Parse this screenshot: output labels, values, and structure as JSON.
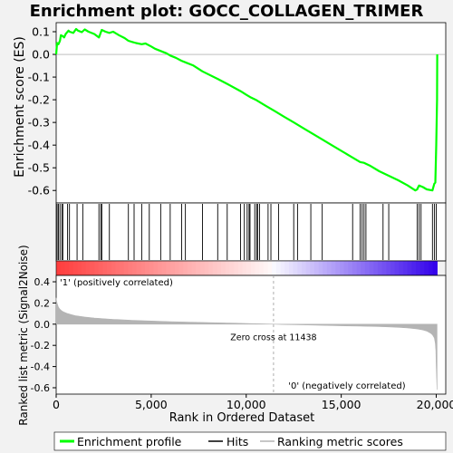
{
  "chart_data": {
    "type": "line",
    "title": "Enrichment plot: GOCC_COLLAGEN_TRIMER",
    "xlabel": "Rank in Ordered Dataset",
    "xlim": [
      0,
      20500
    ],
    "x_ticks": [
      "0",
      "5,000",
      "10,000",
      "15,000",
      "20,000"
    ],
    "x_tick_values": [
      0,
      5000,
      10000,
      15000,
      20000
    ],
    "panels": [
      {
        "name": "enrichment",
        "ylabel": "Enrichment score (ES)",
        "ylim": [
          -0.655,
          0.14
        ],
        "y_ticks": [
          "0.1",
          "0.0",
          "-0.1",
          "-0.2",
          "-0.3",
          "-0.4",
          "-0.5",
          "-0.6"
        ],
        "y_tick_values": [
          0.1,
          0.0,
          -0.1,
          -0.2,
          -0.3,
          -0.4,
          -0.5,
          -0.6
        ],
        "series": [
          {
            "name": "Enrichment profile",
            "color": "#00ff00",
            "x": [
              0,
              50,
              120,
              200,
              250,
              350,
              420,
              500,
              650,
              700,
              900,
              1050,
              1150,
              1350,
              1500,
              1700,
              2000,
              2250,
              2300,
              2400,
              2600,
              2800,
              3000,
              3300,
              3600,
              3800,
              4000,
              4200,
              4500,
              4700,
              5000,
              5200,
              5500,
              5800,
              6000,
              6300,
              6600,
              6800,
              7200,
              7700,
              8500,
              9000,
              9700,
              10000,
              10200,
              10500,
              11000,
              11500,
              12000,
              12500,
              13000,
              13500,
              14000,
              14500,
              15000,
              15500,
              15800,
              16000,
              16200,
              16500,
              17000,
              17500,
              18000,
              18500,
              18900,
              19000,
              19050,
              19100,
              19300,
              19500,
              19800,
              19900,
              19950,
              20000,
              20040,
              20050
            ],
            "y": [
              0.0,
              0.05,
              0.045,
              0.06,
              0.085,
              0.08,
              0.075,
              0.09,
              0.105,
              0.1,
              0.095,
              0.112,
              0.105,
              0.098,
              0.11,
              0.1,
              0.09,
              0.075,
              0.085,
              0.108,
              0.1,
              0.095,
              0.1,
              0.085,
              0.072,
              0.06,
              0.055,
              0.05,
              0.045,
              0.048,
              0.035,
              0.025,
              0.015,
              0.005,
              -0.005,
              -0.015,
              -0.028,
              -0.035,
              -0.048,
              -0.075,
              -0.108,
              -0.13,
              -0.162,
              -0.178,
              -0.188,
              -0.2,
              -0.225,
              -0.25,
              -0.275,
              -0.3,
              -0.325,
              -0.35,
              -0.375,
              -0.4,
              -0.425,
              -0.45,
              -0.465,
              -0.475,
              -0.478,
              -0.49,
              -0.515,
              -0.535,
              -0.555,
              -0.578,
              -0.6,
              -0.595,
              -0.585,
              -0.578,
              -0.585,
              -0.595,
              -0.6,
              -0.57,
              -0.565,
              -0.4,
              -0.2,
              0.0
            ]
          }
        ]
      },
      {
        "name": "hits",
        "series_name": "Hits",
        "hit_ranks": [
          50,
          120,
          200,
          300,
          350,
          600,
          700,
          1100,
          1400,
          2250,
          2350,
          2400,
          2800,
          3800,
          4100,
          4500,
          4900,
          5500,
          6000,
          6600,
          6800,
          7700,
          8500,
          9000,
          9700,
          9900,
          10050,
          10150,
          10200,
          10450,
          10550,
          10600,
          10700,
          11150,
          11300,
          11700,
          12500,
          12700,
          13400,
          14000,
          15600,
          16000,
          16100,
          16200,
          16300,
          17200,
          17500,
          19000,
          19100,
          19200,
          19800,
          19900,
          20000
        ]
      },
      {
        "name": "colorbar",
        "labels": [
          "'1' (positively correlated)",
          "'0' (negatively correlated)"
        ]
      },
      {
        "name": "metric",
        "ylabel": "Ranked list metric (Signal2Noise)",
        "ylim": [
          -0.66,
          0.46
        ],
        "y_ticks": [
          "0.4",
          "0.2",
          "0.0",
          "-0.2",
          "-0.4",
          "-0.6"
        ],
        "y_tick_values": [
          0.4,
          0.2,
          0.0,
          -0.2,
          -0.4,
          -0.6
        ],
        "series": [
          {
            "name": "Ranking metric scores",
            "color": "#b4b4b4",
            "x": [
              0,
              20,
              60,
              120,
              200,
              300,
              400,
              600,
              800,
              1000,
              1500,
              2000,
              3000,
              4000,
              5000,
              6000,
              7000,
              8000,
              9000,
              10000,
              11000,
              11438,
              12000,
              13000,
              14000,
              15000,
              16000,
              17000,
              17500,
              18000,
              18500,
              19000,
              19300,
              19500,
              19700,
              19800,
              19900,
              19950,
              19980,
              20000,
              20040
            ],
            "y": [
              0.25,
              0.22,
              0.19,
              0.16,
              0.14,
              0.125,
              0.115,
              0.1,
              0.09,
              0.08,
              0.068,
              0.058,
              0.045,
              0.036,
              0.03,
              0.024,
              0.019,
              0.015,
              0.011,
              0.007,
              0.003,
              0.0,
              -0.003,
              -0.007,
              -0.011,
              -0.015,
              -0.019,
              -0.023,
              -0.026,
              -0.03,
              -0.036,
              -0.045,
              -0.055,
              -0.065,
              -0.085,
              -0.1,
              -0.13,
              -0.18,
              -0.25,
              -0.4,
              -0.62
            ]
          }
        ],
        "annotation": "Zero cross at 11438",
        "zero_cross": 11438
      }
    ],
    "legend": {
      "placement": "bottom",
      "entries": [
        "Enrichment profile",
        "Hits",
        "Ranking metric scores"
      ]
    },
    "colors": {
      "profile": "#00ff00",
      "positive_label": "#cc0000",
      "negative_label": "#0000cc",
      "metric_fill": "#b4b4b4"
    }
  }
}
